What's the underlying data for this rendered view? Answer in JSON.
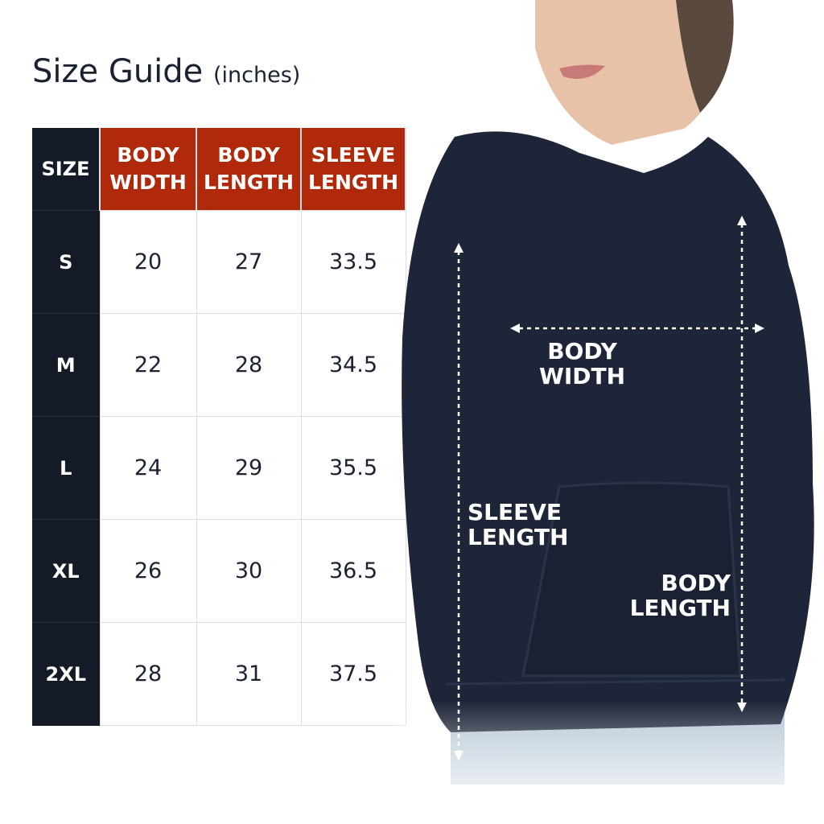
{
  "title": {
    "main": "Size Guide",
    "unit": "(inches)"
  },
  "colors": {
    "header_accent": "#b0290a",
    "size_column": "#151b26",
    "hoodie": "#1e2538"
  },
  "table": {
    "headers": [
      [
        "SIZE"
      ],
      [
        "BODY",
        "WIDTH"
      ],
      [
        "BODY",
        "LENGTH"
      ],
      [
        "SLEEVE",
        "LENGTH"
      ]
    ],
    "rows": [
      [
        "S",
        "20",
        "27",
        "33.5"
      ],
      [
        "M",
        "22",
        "28",
        "34.5"
      ],
      [
        "L",
        "24",
        "29",
        "35.5"
      ],
      [
        "XL",
        "26",
        "30",
        "36.5"
      ],
      [
        "2XL",
        "28",
        "31",
        "37.5"
      ]
    ]
  },
  "diagram": {
    "body_width": [
      "BODY",
      "WIDTH"
    ],
    "sleeve_length": [
      "SLEEVE",
      "LENGTH"
    ],
    "body_length": [
      "BODY",
      "LENGTH"
    ]
  }
}
